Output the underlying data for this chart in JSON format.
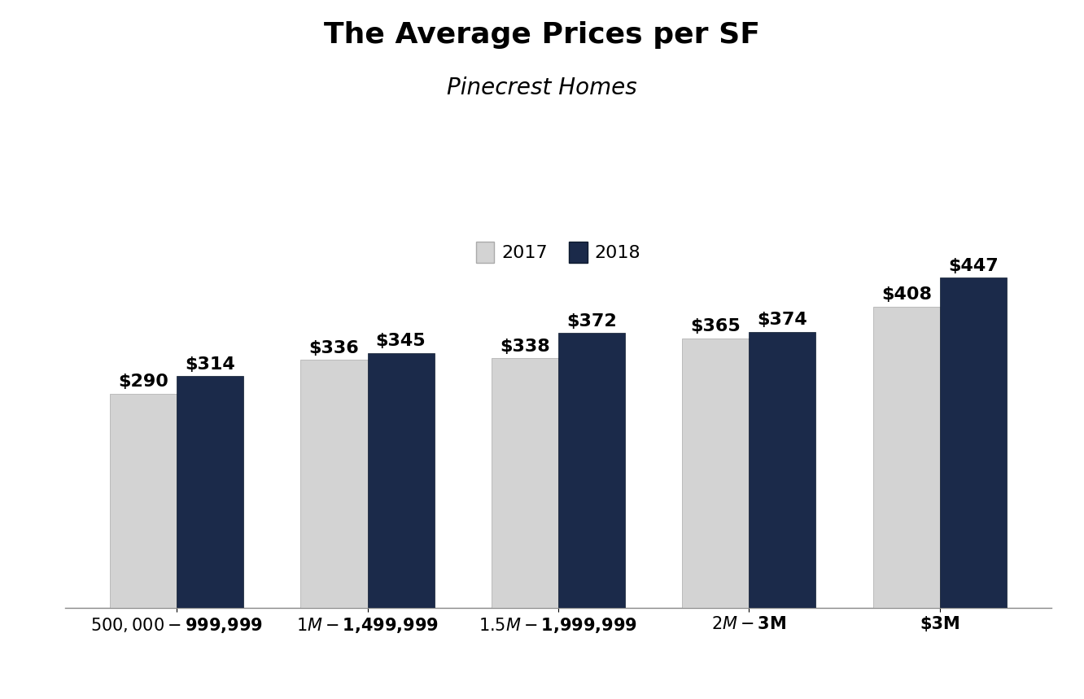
{
  "title": "The Average Prices per SF",
  "subtitle": "Pinecrest Homes",
  "categories": [
    "$500,000 - $999,999",
    "$1M - $1,499,999",
    "$1.5M - $1,999,999",
    "$2M - $3M",
    "$3M"
  ],
  "values_2017": [
    290,
    336,
    338,
    365,
    408
  ],
  "values_2018": [
    314,
    345,
    372,
    374,
    447
  ],
  "labels_2017": [
    "$290",
    "$336",
    "$338",
    "$365",
    "$408"
  ],
  "labels_2018": [
    "$314",
    "$345",
    "$372",
    "$374",
    "$447"
  ],
  "color_2017": "#d3d3d3",
  "color_2018": "#1b2a4a",
  "bar_width": 0.35,
  "title_fontsize": 26,
  "subtitle_fontsize": 20,
  "label_fontsize": 16,
  "tick_fontsize": 15,
  "legend_fontsize": 16,
  "background_color": "#ffffff",
  "ylim": [
    0,
    520
  ]
}
